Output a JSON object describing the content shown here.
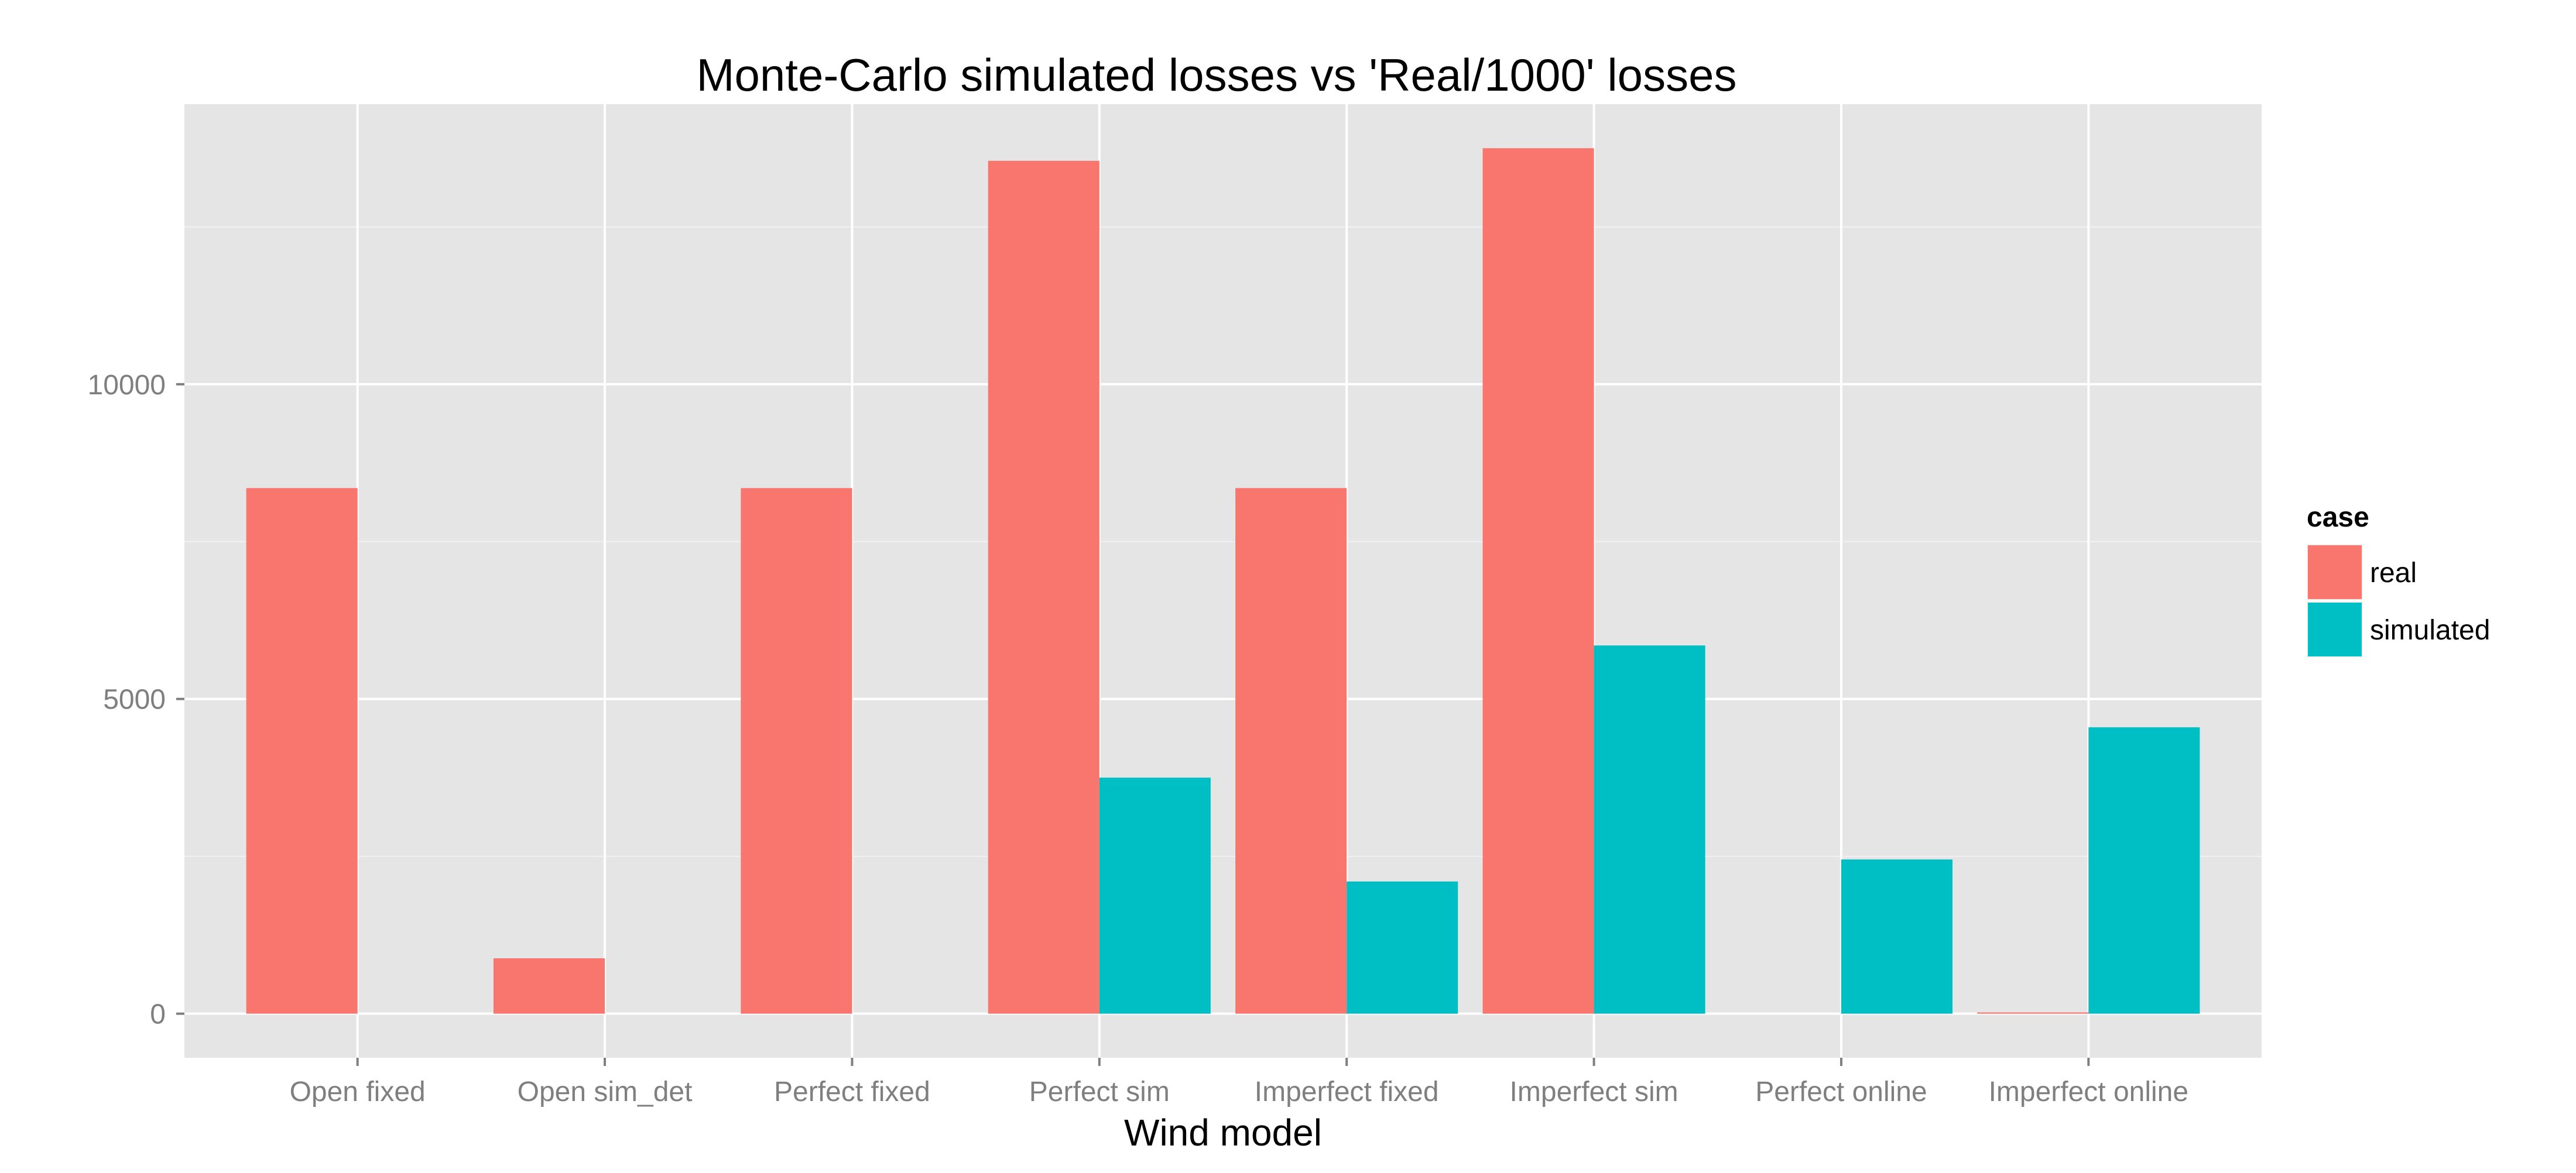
{
  "chart_data": {
    "type": "bar",
    "title": "Monte-Carlo simulated losses vs 'Real/1000' losses",
    "xlabel": "Wind model",
    "ylabel": "",
    "categories": [
      "Open fixed",
      "Open sim_det",
      "Perfect fixed",
      "Perfect sim",
      "Imperfect fixed",
      "Imperfect sim",
      "Perfect online",
      "Imperfect online"
    ],
    "series": [
      {
        "name": "real",
        "color": "#F8766D",
        "values": [
          8350,
          880,
          8350,
          13550,
          8350,
          13750,
          0,
          20
        ]
      },
      {
        "name": "simulated",
        "color": "#00BFC4",
        "values": [
          0,
          0,
          0,
          3750,
          2100,
          5850,
          2450,
          4550
        ]
      }
    ],
    "ylim": [
      -700,
      14450
    ],
    "yticks": [
      0,
      5000,
      10000
    ],
    "ytick_labels": [
      "0",
      "5000",
      "10000"
    ],
    "grid": true,
    "legend": {
      "title": "case",
      "position": "right",
      "entries": [
        "real",
        "simulated"
      ]
    },
    "colors": {
      "panel_background": "#E5E5E5",
      "grid_major": "#FFFFFF",
      "grid_minor": "#F2F2F2",
      "tick_text": "#7F7F7F",
      "real": "#F8766D",
      "simulated": "#00BFC4"
    }
  }
}
